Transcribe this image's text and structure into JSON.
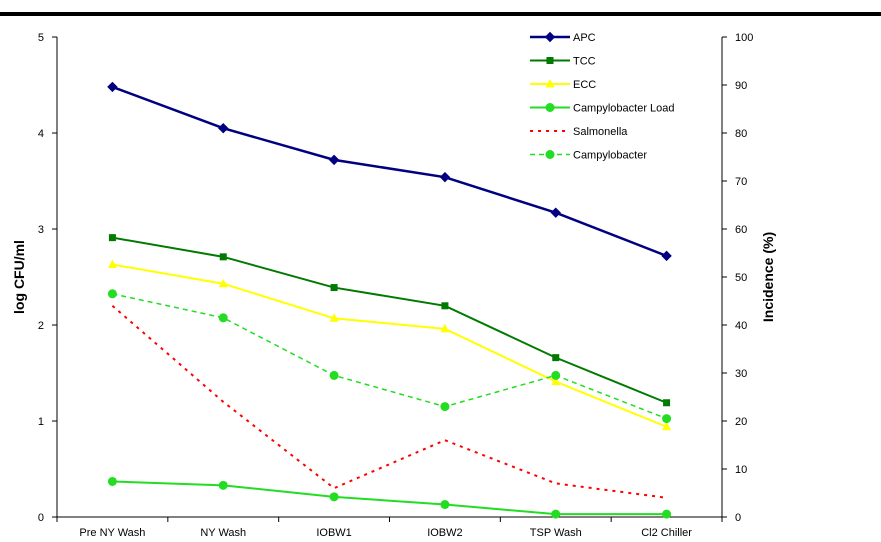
{
  "chart_data": {
    "type": "line",
    "title": "",
    "categories": [
      "Pre NY Wash",
      "NY Wash",
      "IOBW1",
      "IOBW2",
      "TSP Wash",
      "Cl2 Chiller"
    ],
    "y_left": {
      "label": "log CFU/ml",
      "lim": [
        0,
        5
      ],
      "ticks": [
        0,
        1,
        2,
        3,
        4,
        5
      ]
    },
    "y_right": {
      "label": "Incidence (%)",
      "lim": [
        0,
        100
      ],
      "ticks": [
        0,
        10,
        20,
        30,
        40,
        50,
        60,
        70,
        80,
        90,
        100
      ]
    },
    "grid": false,
    "legend_position": "top-right",
    "series": [
      {
        "name": "APC",
        "axis": "left",
        "color": "#000080",
        "line": "solid",
        "width": 2.5,
        "marker": "diamond",
        "values": [
          4.48,
          4.05,
          3.72,
          3.54,
          3.17,
          2.72
        ]
      },
      {
        "name": "TCC",
        "axis": "left",
        "color": "#007a00",
        "line": "solid",
        "width": 2,
        "marker": "square",
        "values": [
          2.91,
          2.71,
          2.39,
          2.2,
          1.66,
          1.19
        ]
      },
      {
        "name": "ECC",
        "axis": "left",
        "color": "#ffff00",
        "line": "solid",
        "width": 2,
        "marker": "triangle",
        "values": [
          2.63,
          2.43,
          2.07,
          1.96,
          1.41,
          0.94
        ]
      },
      {
        "name": "Campylobacter Load",
        "axis": "left",
        "color": "#22dd22",
        "line": "solid",
        "width": 2,
        "marker": "circle",
        "values": [
          0.37,
          0.33,
          0.21,
          0.13,
          0.03,
          0.03
        ]
      },
      {
        "name": "Salmonella",
        "axis": "right",
        "color": "#ff0000",
        "line": "dotted",
        "width": 2,
        "marker": "none",
        "values": [
          44,
          24,
          6,
          16,
          7,
          4
        ]
      },
      {
        "name": "Campylobacter",
        "axis": "right",
        "color": "#22dd22",
        "line": "dashed",
        "width": 1.5,
        "marker": "circle",
        "values": [
          46.5,
          41.5,
          29.5,
          23,
          29.5,
          20.5
        ]
      }
    ]
  }
}
